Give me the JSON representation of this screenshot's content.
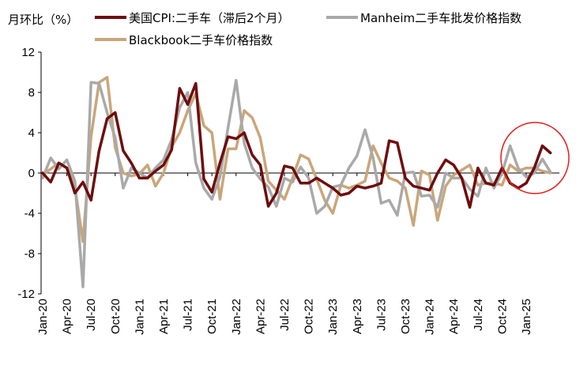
{
  "chart_data": {
    "type": "line",
    "ylabel": "月环比（%）",
    "ylim": [
      -12,
      12
    ],
    "yticks": [
      12,
      8,
      4,
      0,
      -4,
      -8,
      -12
    ],
    "x_ticks": [
      "Jan-20",
      "Apr-20",
      "Jul-20",
      "Oct-20",
      "Jan-21",
      "Apr-21",
      "Jul-21",
      "Oct-21",
      "Jan-22",
      "Apr-22",
      "Jul-22",
      "Oct-22",
      "Jan-23",
      "Apr-23",
      "Jul-23",
      "Oct-23",
      "Jan-24",
      "Apr-24",
      "Jul-24",
      "Oct-24",
      "Jan-25"
    ],
    "annotation": "red circle highlighting recent months (Oct-24 to Feb-25)",
    "series": [
      {
        "name": "美国CPI:二手车（滞后2个月）",
        "color": "#6e0d0d",
        "values": [
          0.0,
          -0.9,
          1.0,
          0.5,
          -2.0,
          -0.9,
          -2.7,
          2.2,
          5.4,
          6.0,
          2.2,
          1.0,
          -0.5,
          -0.5,
          0.2,
          0.8,
          2.3,
          8.4,
          6.8,
          8.9,
          -0.6,
          -1.9,
          1.0,
          3.6,
          3.4,
          4.0,
          1.8,
          0.8,
          -3.3,
          -2.0,
          0.7,
          0.5,
          -1.0,
          -1.0,
          -0.5,
          -1.0,
          -1.5,
          -2.2,
          -2.0,
          -1.3,
          -1.5,
          -1.3,
          -1.0,
          3.2,
          3.0,
          -0.5,
          -1.3,
          -1.5,
          -1.7,
          0.0,
          1.3,
          0.8,
          -0.5,
          -3.4,
          0.5,
          -1.0,
          -1.2,
          0.5,
          -1.0,
          -1.5,
          -1.0,
          0.5,
          2.7,
          2.0
        ]
      },
      {
        "name": "Manheim二手车批发价格指数",
        "color": "#a9a9a9",
        "values": [
          -0.5,
          1.5,
          0.4,
          1.3,
          -0.8,
          -11.3,
          9.0,
          8.9,
          6.0,
          3.5,
          -1.5,
          0.5,
          0.0,
          -0.5,
          0.5,
          1.3,
          3.3,
          6.5,
          8.0,
          1.0,
          -1.5,
          -2.6,
          -0.4,
          4.5,
          9.2,
          3.0,
          0.5,
          -0.6,
          -1.4,
          -3.3,
          -0.5,
          -0.9,
          0.6,
          -0.5,
          -4.0,
          -3.3,
          -1.4,
          -1.2,
          0.5,
          1.7,
          4.3,
          1.5,
          -3.0,
          -2.7,
          -4.2,
          0.0,
          0.1,
          -2.3,
          -2.2,
          -3.4,
          0.0,
          -0.5,
          -0.5,
          -1.6,
          -2.3,
          0.5,
          -1.5,
          0.0,
          2.7,
          0.5,
          -0.4,
          0.0,
          1.4,
          0.1
        ]
      },
      {
        "name": "Blackbook二手车价格指数",
        "color": "#c9a67a",
        "values": [
          -0.2,
          0.4,
          1.0,
          0.5,
          -1.4,
          -6.8,
          3.6,
          9.0,
          9.5,
          2.5,
          0.0,
          -0.3,
          -0.1,
          0.8,
          -1.3,
          0.0,
          2.6,
          4.0,
          6.2,
          7.9,
          4.7,
          4.0,
          -2.6,
          2.4,
          2.4,
          6.2,
          5.5,
          3.5,
          -0.8,
          -1.7,
          -2.6,
          -0.5,
          1.8,
          1.4,
          -0.6,
          -2.7,
          -4.0,
          -1.2,
          -1.5,
          -1.2,
          -0.8,
          2.7,
          1.0,
          -0.5,
          -0.8,
          -1.5,
          -5.2,
          0.2,
          -0.2,
          -4.7,
          -1.3,
          -0.2,
          0.3,
          0.8,
          -1.2,
          -1.0,
          -1.0,
          -1.2,
          0.8,
          0.2,
          0.5,
          0.5,
          0.2,
          0.0
        ]
      }
    ]
  }
}
